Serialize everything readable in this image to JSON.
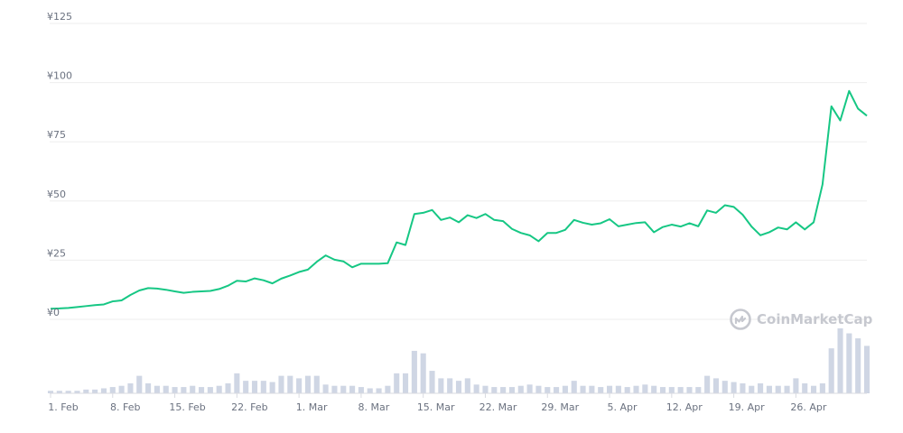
{
  "chart_data": {
    "type": "line",
    "y_ticks": [
      "¥125",
      "¥100",
      "¥75",
      "¥50",
      "¥25",
      "¥0"
    ],
    "y_tick_values": [
      125,
      100,
      75,
      50,
      25,
      0
    ],
    "ylim": [
      0,
      125
    ],
    "x_ticks": [
      "1. Feb",
      "8. Feb",
      "15. Feb",
      "22. Feb",
      "1. Mar",
      "8. Mar",
      "15. Mar",
      "22. Mar",
      "29. Mar",
      "5. Apr",
      "12. Apr",
      "19. Apr",
      "26. Apr"
    ],
    "x_tick_days": [
      0,
      7,
      14,
      21,
      28,
      35,
      42,
      49,
      56,
      63,
      70,
      77,
      84
    ],
    "grid": true,
    "watermark": "CoinMarketCap",
    "colors": {
      "line": "#16c784",
      "volume": "#cfd6e4",
      "grid": "#eeeeee",
      "text": "#6b7280"
    },
    "series": [
      {
        "type": "line",
        "values": [
          4.5,
          4.6,
          4.8,
          5.2,
          5.6,
          6.0,
          6.3,
          7.6,
          8.0,
          10.3,
          12.2,
          13.2,
          13.0,
          12.5,
          11.8,
          11.2,
          11.6,
          11.8,
          12.0,
          12.8,
          14.2,
          16.3,
          16.0,
          17.3,
          16.5,
          15.2,
          17.2,
          18.5,
          20.0,
          21.0,
          24.3,
          27.0,
          25.2,
          24.5,
          22.0,
          23.5,
          23.5,
          23.5,
          23.7,
          32.5,
          31.4,
          44.5,
          45.0,
          46.2,
          42.0,
          43.0,
          41.0,
          44.0,
          42.8,
          44.5,
          42.0,
          41.5,
          38.2,
          36.5,
          35.5,
          33.0,
          36.5,
          36.5,
          37.8,
          42.0,
          40.8,
          40.0,
          40.6,
          42.3,
          39.3,
          40.0,
          40.7,
          41.0,
          36.8,
          39.0,
          40.0,
          39.2,
          40.6,
          39.3,
          46.0,
          45.0,
          48.2,
          47.5,
          44.2,
          39.2,
          35.5,
          36.8,
          38.8,
          38.0,
          41.0,
          38.0,
          41.0,
          57.0,
          90.0,
          84.0,
          96.5,
          89.0,
          86.0
        ]
      },
      {
        "type": "bar",
        "name": "volume",
        "values": [
          1,
          1,
          1,
          1,
          1.5,
          1.5,
          2,
          2.5,
          3,
          4,
          7,
          4,
          3,
          3,
          2.5,
          2.5,
          3,
          2.5,
          2.5,
          3,
          4,
          8,
          5,
          5,
          5,
          4.5,
          7,
          7,
          6,
          7,
          7,
          3.5,
          3,
          3,
          3,
          2.5,
          2,
          2,
          3,
          8,
          8,
          17,
          16,
          9,
          6,
          6,
          5,
          6,
          3.5,
          3,
          2.5,
          2.5,
          2.5,
          3,
          3.5,
          3,
          2.5,
          2.5,
          3,
          5,
          3,
          3,
          2.5,
          3,
          3,
          2.5,
          3,
          3.5,
          3,
          2.5,
          2.5,
          2.5,
          2.5,
          2.5,
          7,
          6,
          5,
          4.5,
          4,
          3,
          4,
          3,
          3,
          3,
          6,
          4,
          3,
          4,
          18,
          26,
          24,
          22,
          19
        ]
      }
    ]
  }
}
